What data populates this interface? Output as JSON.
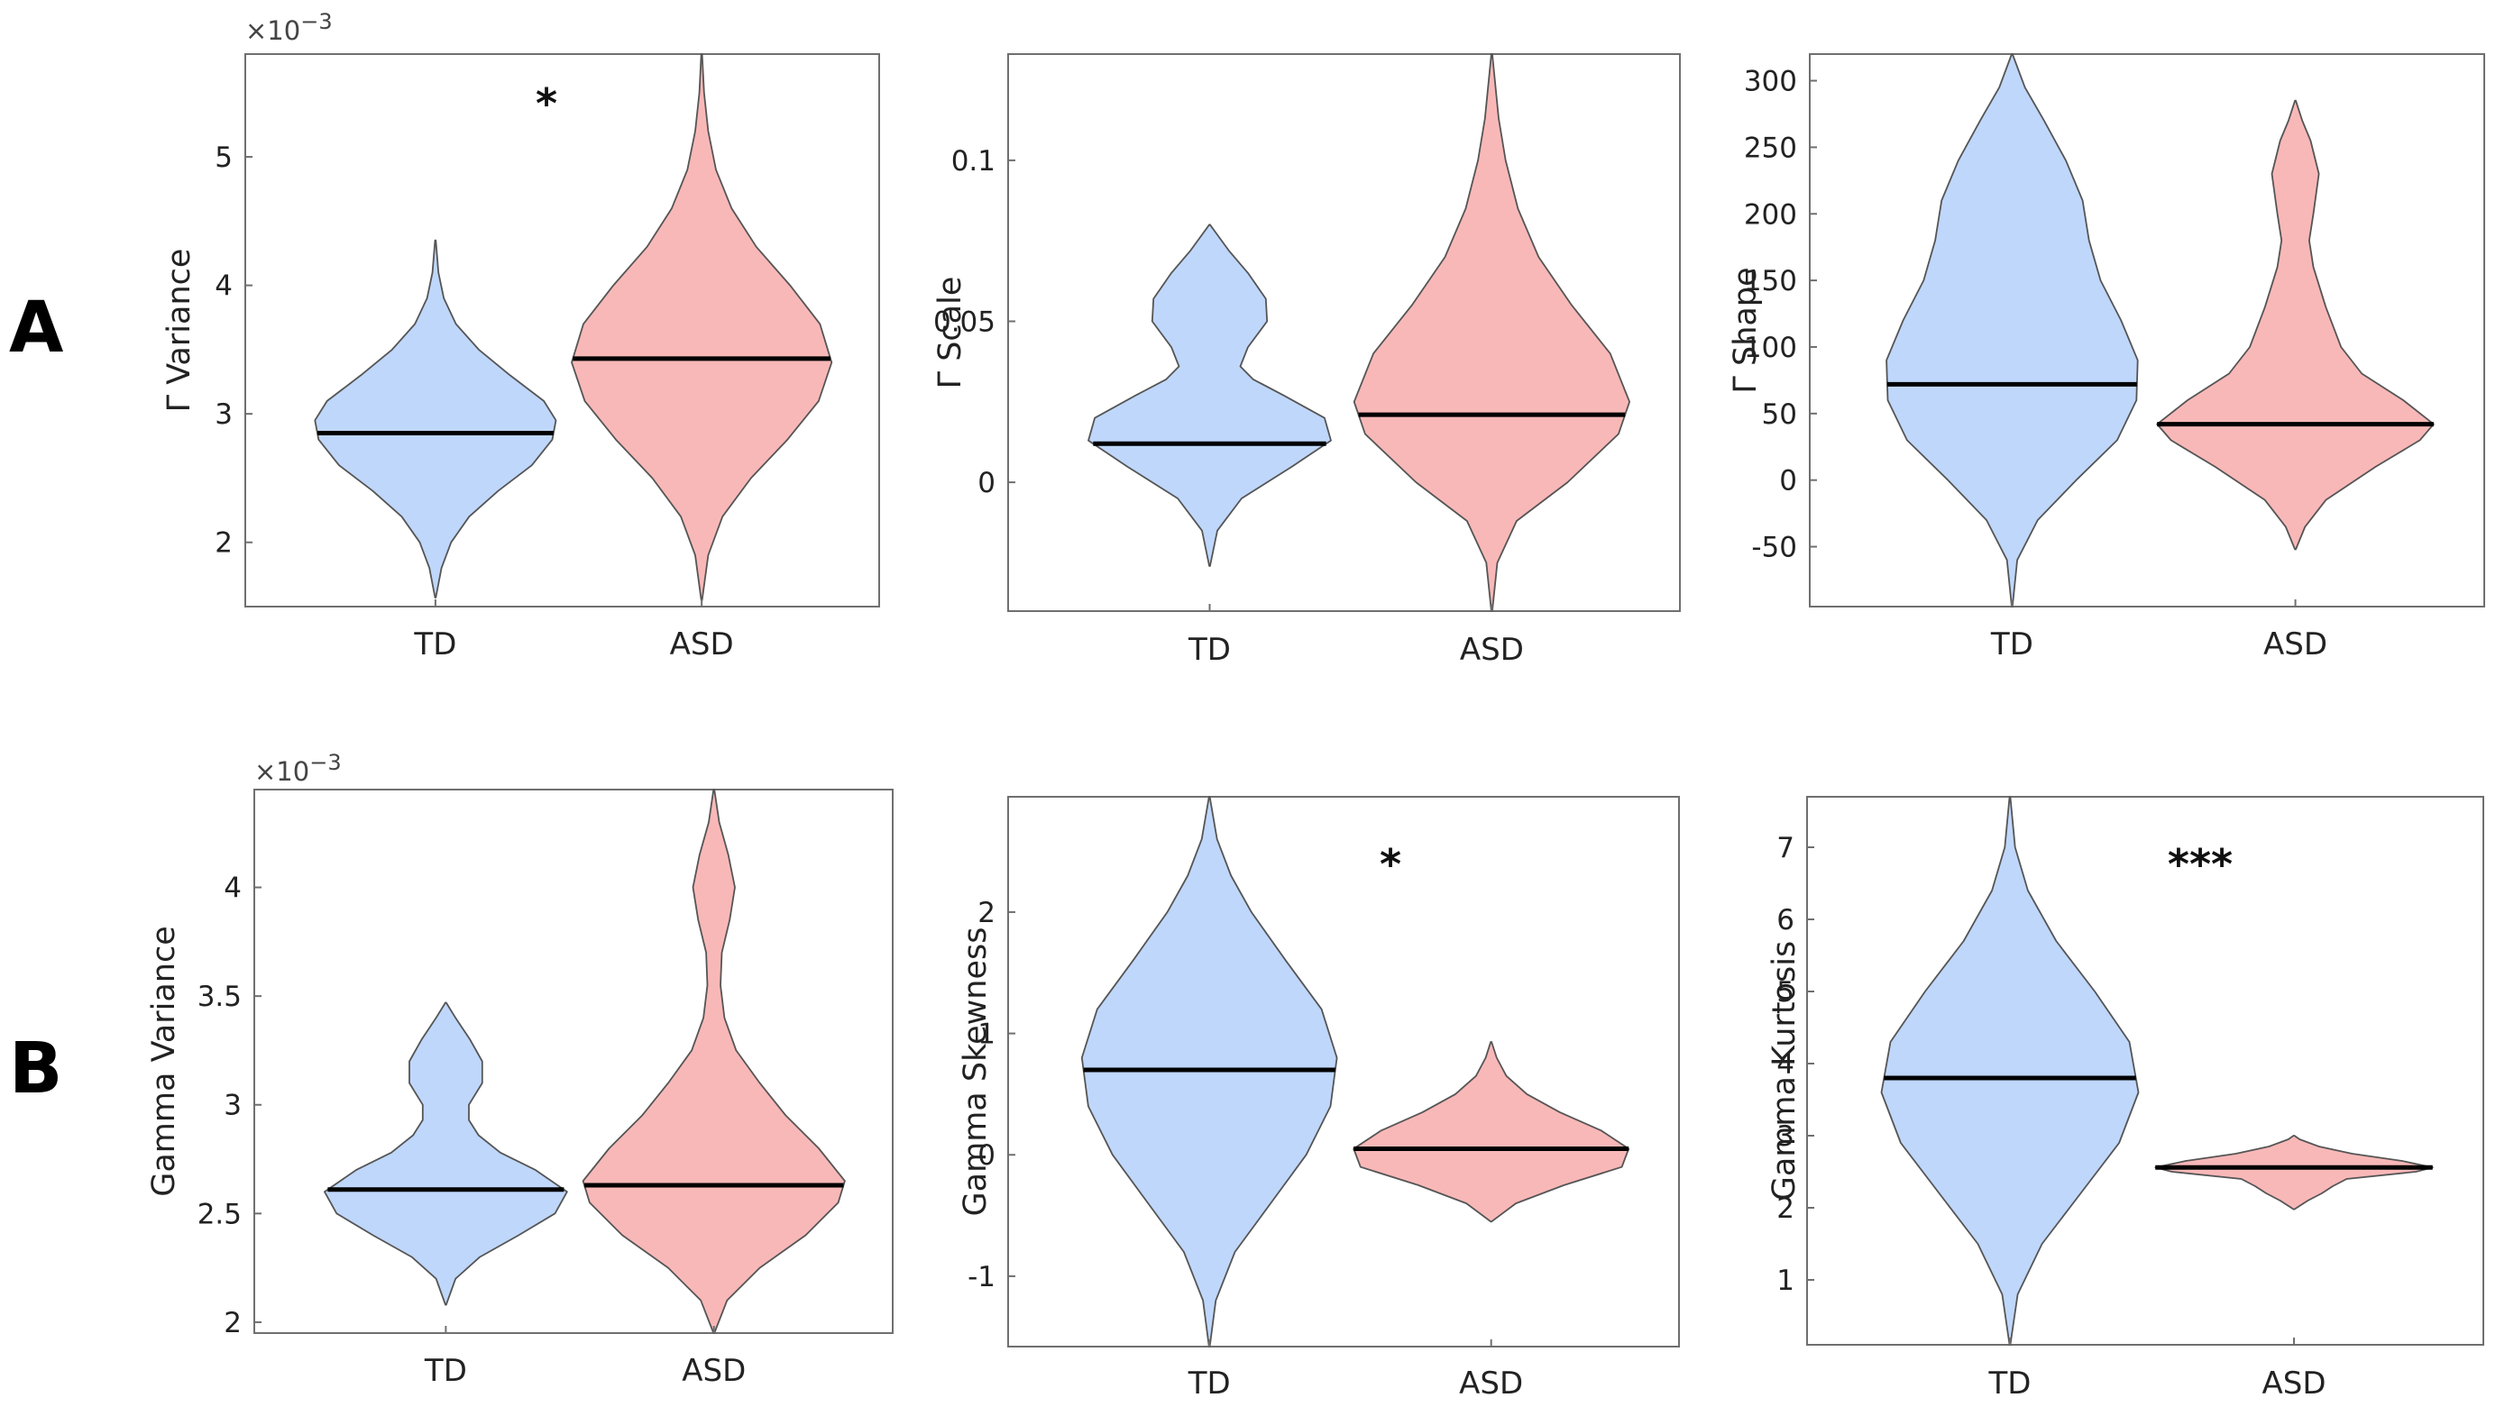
{
  "panel_labels": [
    "A",
    "B"
  ],
  "colors": {
    "TD": "#bfd7fb",
    "ASD": "#f9b8b8",
    "outline": "#555555",
    "median": "#000000"
  },
  "chart_data": [
    {
      "type": "violin",
      "ylabel": "Γ Variance",
      "exponent": "×10",
      "exponent_power": "−3",
      "categories": [
        "TD",
        "ASD"
      ],
      "ylim": [
        1.5,
        5.8
      ],
      "yticks": [
        2,
        3,
        4,
        5
      ],
      "yticklabels": [
        "2",
        "3",
        "4",
        "5"
      ],
      "significance": "*",
      "series": [
        {
          "name": "TD",
          "median": 2.85,
          "shape": [
            [
              1.57,
              0.003
            ],
            [
              1.8,
              0.05
            ],
            [
              2.0,
              0.13
            ],
            [
              2.2,
              0.28
            ],
            [
              2.4,
              0.52
            ],
            [
              2.6,
              0.8
            ],
            [
              2.8,
              0.97
            ],
            [
              2.95,
              1.0
            ],
            [
              3.1,
              0.9
            ],
            [
              3.3,
              0.62
            ],
            [
              3.5,
              0.36
            ],
            [
              3.7,
              0.17
            ],
            [
              3.9,
              0.07
            ],
            [
              4.1,
              0.025
            ],
            [
              4.35,
              0.003
            ]
          ]
        },
        {
          "name": "ASD",
          "median": 3.43,
          "shape": [
            [
              1.55,
              0.003
            ],
            [
              1.9,
              0.05
            ],
            [
              2.2,
              0.16
            ],
            [
              2.5,
              0.38
            ],
            [
              2.8,
              0.66
            ],
            [
              3.1,
              0.9
            ],
            [
              3.4,
              1.0
            ],
            [
              3.7,
              0.91
            ],
            [
              4.0,
              0.68
            ],
            [
              4.3,
              0.42
            ],
            [
              4.6,
              0.23
            ],
            [
              4.9,
              0.11
            ],
            [
              5.2,
              0.05
            ],
            [
              5.5,
              0.018
            ],
            [
              5.8,
              0.003
            ]
          ]
        }
      ]
    },
    {
      "type": "violin",
      "ylabel": "Γ Scale",
      "categories": [
        "TD",
        "ASD"
      ],
      "ylim": [
        -0.04,
        0.133
      ],
      "yticks": [
        0,
        0.05,
        0.1
      ],
      "yticklabels": [
        "0",
        "0.05",
        "0.1"
      ],
      "series": [
        {
          "name": "TD",
          "median": 0.012,
          "shape": [
            [
              -0.026,
              0.003
            ],
            [
              -0.015,
              0.06
            ],
            [
              -0.005,
              0.25
            ],
            [
              0.005,
              0.65
            ],
            [
              0.013,
              0.95
            ],
            [
              0.02,
              0.9
            ],
            [
              0.027,
              0.58
            ],
            [
              0.032,
              0.34
            ],
            [
              0.036,
              0.24
            ],
            [
              0.042,
              0.3
            ],
            [
              0.05,
              0.45
            ],
            [
              0.057,
              0.44
            ],
            [
              0.065,
              0.3
            ],
            [
              0.072,
              0.15
            ],
            [
              0.08,
              0.003
            ]
          ]
        },
        {
          "name": "ASD",
          "median": 0.021,
          "shape": [
            [
              -0.04,
              0.003
            ],
            [
              -0.025,
              0.04
            ],
            [
              -0.012,
              0.18
            ],
            [
              0.0,
              0.55
            ],
            [
              0.015,
              0.92
            ],
            [
              0.025,
              1.0
            ],
            [
              0.04,
              0.86
            ],
            [
              0.055,
              0.58
            ],
            [
              0.07,
              0.34
            ],
            [
              0.085,
              0.19
            ],
            [
              0.1,
              0.1
            ],
            [
              0.113,
              0.05
            ],
            [
              0.133,
              0.003
            ]
          ]
        }
      ]
    },
    {
      "type": "violin",
      "ylabel": "Γ Shape",
      "categories": [
        "TD",
        "ASD"
      ],
      "ylim": [
        -95,
        320
      ],
      "yticks": [
        -50,
        0,
        50,
        100,
        150,
        200,
        250,
        300
      ],
      "yticklabels": [
        "-50",
        "0",
        "50",
        "100",
        "150",
        "200",
        "250",
        "300"
      ],
      "series": [
        {
          "name": "TD",
          "median": 72,
          "shape": [
            [
              -95,
              0.003
            ],
            [
              -60,
              0.04
            ],
            [
              -30,
              0.2
            ],
            [
              0,
              0.5
            ],
            [
              30,
              0.82
            ],
            [
              60,
              0.97
            ],
            [
              90,
              0.98
            ],
            [
              120,
              0.85
            ],
            [
              150,
              0.69
            ],
            [
              180,
              0.6
            ],
            [
              210,
              0.55
            ],
            [
              240,
              0.42
            ],
            [
              270,
              0.25
            ],
            [
              295,
              0.1
            ],
            [
              320,
              0.003
            ]
          ]
        },
        {
          "name": "ASD",
          "median": 42,
          "shape": [
            [
              -52,
              0.003
            ],
            [
              -35,
              0.07
            ],
            [
              -15,
              0.22
            ],
            [
              10,
              0.58
            ],
            [
              30,
              0.9
            ],
            [
              42,
              1.0
            ],
            [
              60,
              0.78
            ],
            [
              80,
              0.48
            ],
            [
              100,
              0.33
            ],
            [
              130,
              0.22
            ],
            [
              160,
              0.13
            ],
            [
              180,
              0.1
            ],
            [
              200,
              0.13
            ],
            [
              230,
              0.17
            ],
            [
              255,
              0.11
            ],
            [
              270,
              0.05
            ],
            [
              285,
              0.003
            ]
          ]
        }
      ]
    },
    {
      "type": "violin",
      "ylabel": "Gamma Variance",
      "exponent": "×10",
      "exponent_power": "−3",
      "categories": [
        "TD",
        "ASD"
      ],
      "ylim": [
        1.95,
        4.45
      ],
      "yticks": [
        2,
        2.5,
        3,
        3.5,
        4
      ],
      "yticklabels": [
        "2",
        "2.5",
        "3",
        "3.5",
        "4"
      ],
      "series": [
        {
          "name": "TD",
          "median": 2.61,
          "shape": [
            [
              2.08,
              0.003
            ],
            [
              2.2,
              0.08
            ],
            [
              2.3,
              0.28
            ],
            [
              2.4,
              0.6
            ],
            [
              2.5,
              0.9
            ],
            [
              2.6,
              1.0
            ],
            [
              2.7,
              0.74
            ],
            [
              2.78,
              0.45
            ],
            [
              2.86,
              0.27
            ],
            [
              2.93,
              0.19
            ],
            [
              3.0,
              0.19
            ],
            [
              3.1,
              0.3
            ],
            [
              3.2,
              0.3
            ],
            [
              3.3,
              0.2
            ],
            [
              3.4,
              0.08
            ],
            [
              3.47,
              0.003
            ]
          ]
        },
        {
          "name": "ASD",
          "median": 2.63,
          "shape": [
            [
              1.95,
              0.003
            ],
            [
              2.1,
              0.1
            ],
            [
              2.25,
              0.35
            ],
            [
              2.4,
              0.7
            ],
            [
              2.55,
              0.95
            ],
            [
              2.65,
              1.0
            ],
            [
              2.8,
              0.8
            ],
            [
              2.95,
              0.55
            ],
            [
              3.1,
              0.35
            ],
            [
              3.25,
              0.17
            ],
            [
              3.4,
              0.08
            ],
            [
              3.55,
              0.05
            ],
            [
              3.7,
              0.06
            ],
            [
              3.85,
              0.12
            ],
            [
              4.0,
              0.16
            ],
            [
              4.15,
              0.11
            ],
            [
              4.3,
              0.04
            ],
            [
              4.45,
              0.003
            ]
          ]
        }
      ]
    },
    {
      "type": "violin",
      "ylabel": "Gamma Skewness",
      "categories": [
        "TD",
        "ASD"
      ],
      "ylim": [
        -1.58,
        2.95
      ],
      "yticks": [
        -1,
        0,
        1,
        2
      ],
      "yticklabels": [
        "-1",
        "0",
        "1",
        "2"
      ],
      "significance": "*",
      "series": [
        {
          "name": "TD",
          "median": 0.7,
          "shape": [
            [
              -1.58,
              0.003
            ],
            [
              -1.2,
              0.05
            ],
            [
              -0.8,
              0.2
            ],
            [
              -0.4,
              0.48
            ],
            [
              0.0,
              0.76
            ],
            [
              0.4,
              0.95
            ],
            [
              0.8,
              1.0
            ],
            [
              1.2,
              0.88
            ],
            [
              1.6,
              0.6
            ],
            [
              2.0,
              0.33
            ],
            [
              2.3,
              0.17
            ],
            [
              2.6,
              0.06
            ],
            [
              2.95,
              0.003
            ]
          ]
        },
        {
          "name": "ASD",
          "median": 0.05,
          "shape": [
            [
              -0.55,
              0.003
            ],
            [
              -0.4,
              0.18
            ],
            [
              -0.25,
              0.53
            ],
            [
              -0.1,
              0.95
            ],
            [
              0.05,
              1.0
            ],
            [
              0.2,
              0.8
            ],
            [
              0.35,
              0.5
            ],
            [
              0.5,
              0.26
            ],
            [
              0.65,
              0.11
            ],
            [
              0.8,
              0.04
            ],
            [
              0.93,
              0.003
            ]
          ]
        }
      ]
    },
    {
      "type": "violin",
      "ylabel": "Gamma Kurtosis",
      "categories": [
        "TD",
        "ASD"
      ],
      "ylim": [
        0.1,
        7.7
      ],
      "yticks": [
        1,
        2,
        3,
        4,
        5,
        6,
        7
      ],
      "yticklabels": [
        "1",
        "2",
        "3",
        "4",
        "5",
        "6",
        "7"
      ],
      "significance": "***",
      "series": [
        {
          "name": "TD",
          "median": 3.8,
          "shape": [
            [
              0.1,
              0.003
            ],
            [
              0.8,
              0.06
            ],
            [
              1.5,
              0.25
            ],
            [
              2.2,
              0.55
            ],
            [
              2.9,
              0.85
            ],
            [
              3.6,
              1.0
            ],
            [
              4.3,
              0.93
            ],
            [
              5.0,
              0.66
            ],
            [
              5.7,
              0.36
            ],
            [
              6.4,
              0.14
            ],
            [
              7.0,
              0.04
            ],
            [
              7.7,
              0.003
            ]
          ]
        },
        {
          "name": "ASD",
          "median": 2.56,
          "shape": [
            [
              1.98,
              0.003
            ],
            [
              2.1,
              0.1
            ],
            [
              2.2,
              0.2
            ],
            [
              2.3,
              0.28
            ],
            [
              2.4,
              0.38
            ],
            [
              2.5,
              0.88
            ],
            [
              2.56,
              1.0
            ],
            [
              2.65,
              0.78
            ],
            [
              2.75,
              0.42
            ],
            [
              2.85,
              0.18
            ],
            [
              2.95,
              0.04
            ],
            [
              3.0,
              0.003
            ]
          ]
        }
      ]
    }
  ]
}
